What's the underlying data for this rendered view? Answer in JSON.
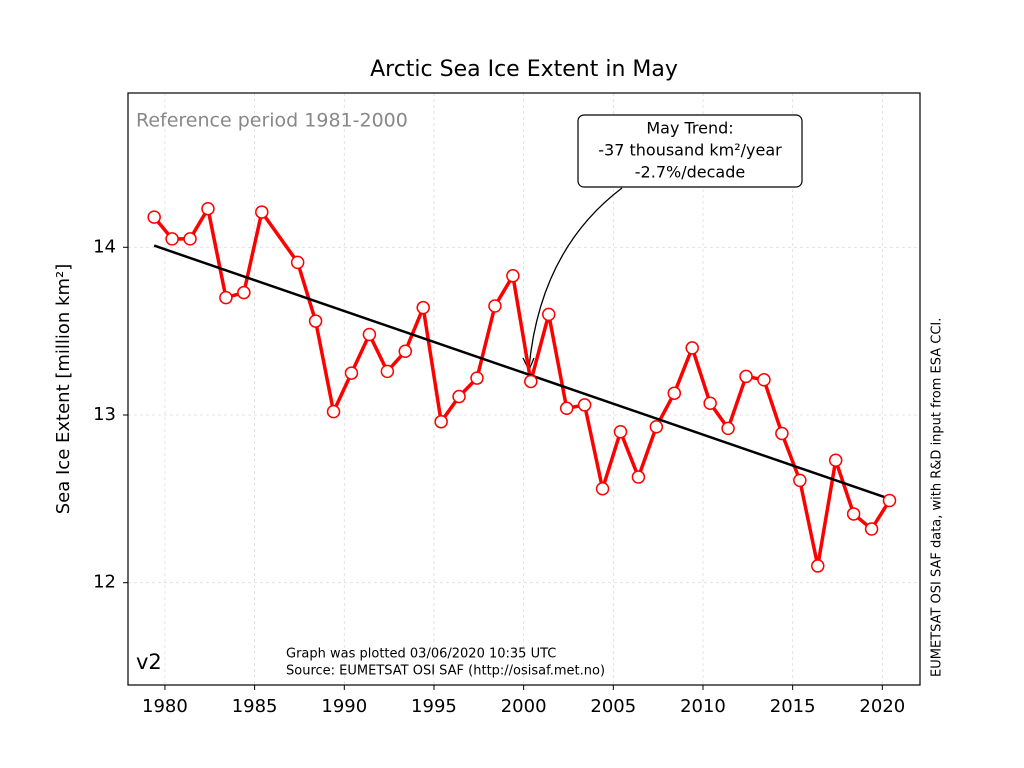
{
  "chart_data": {
    "type": "line",
    "title": "Arctic Sea Ice Extent in May",
    "y_label": "Sea Ice Extent [million km²]",
    "x": [
      1979.4,
      1980.4,
      1981.4,
      1982.4,
      1983.4,
      1984.4,
      1985.4,
      1987.4,
      1988.4,
      1989.4,
      1990.4,
      1991.4,
      1992.4,
      1993.4,
      1994.4,
      1995.4,
      1996.4,
      1997.4,
      1998.4,
      1999.4,
      2000.4,
      2001.4,
      2002.4,
      2003.4,
      2004.4,
      2005.4,
      2006.4,
      2007.4,
      2008.4,
      2009.4,
      2010.4,
      2011.4,
      2012.4,
      2013.4,
      2014.4,
      2015.4,
      2016.4,
      2017.4,
      2018.4,
      2019.4,
      2020.4
    ],
    "series": [
      {
        "color": "#ff0000",
        "values": [
          14.18,
          14.05,
          14.05,
          14.23,
          13.7,
          13.73,
          14.21,
          13.91,
          13.56,
          13.02,
          13.25,
          13.48,
          13.26,
          13.38,
          13.64,
          12.96,
          13.11,
          13.22,
          13.65,
          13.83,
          13.2,
          13.6,
          13.04,
          13.06,
          12.56,
          12.9,
          12.63,
          12.93,
          13.13,
          13.4,
          13.07,
          12.92,
          13.23,
          13.21,
          12.89,
          12.61,
          12.1,
          12.73,
          12.41,
          12.32,
          12.49
        ]
      }
    ],
    "trend": {
      "color": "#000000",
      "x": [
        1979.4,
        2020.4
      ],
      "values": [
        14.01,
        12.5
      ]
    },
    "xlim": [
      1977.94,
      2022.1
    ],
    "ylim": [
      11.39,
      14.92
    ],
    "xticks": [
      1980,
      1985,
      1990,
      1995,
      2000,
      2005,
      2010,
      2015,
      2020
    ],
    "yticks": [
      12,
      13,
      14
    ],
    "grid": true,
    "annotations": {
      "reference": "Reference period 1981-2000",
      "trend_box": [
        "May Trend:",
        "-37 thousand km²/year",
        "-2.7%/decade"
      ],
      "version": "v2",
      "footer": [
        "Graph was plotted 03/06/2020 10:35 UTC",
        "Source: EUMETSAT OSI SAF (http://osisaf.met.no)"
      ],
      "side": "EUMETSAT OSI SAF data, with R&D input from ESA CCI."
    }
  }
}
